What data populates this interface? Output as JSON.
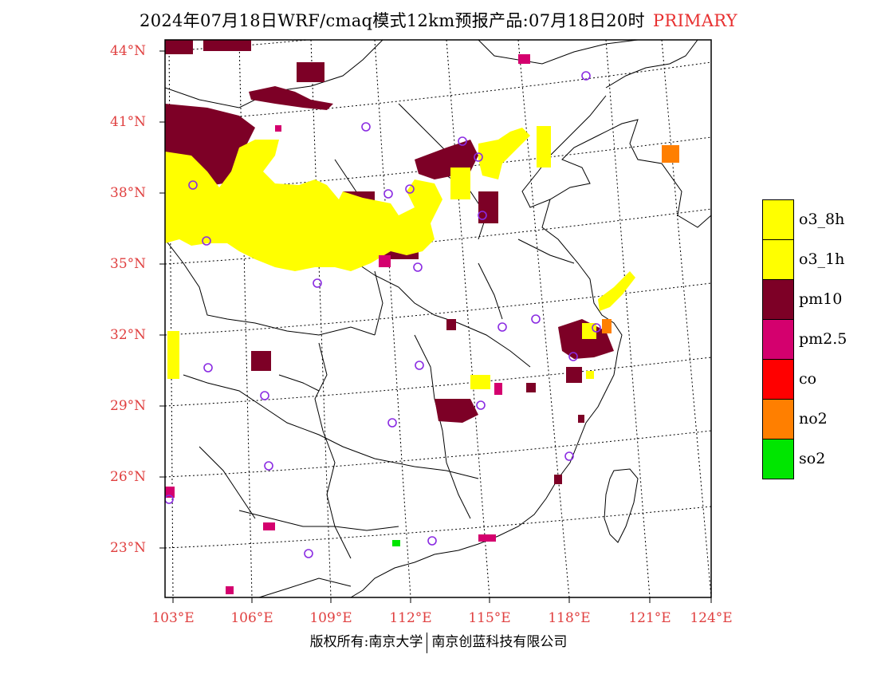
{
  "title": {
    "main": "2024年07月18日WRF/cmaq模式12km预报产品:07月18日20时",
    "tag": "PRIMARY"
  },
  "lat_labels": [
    "44°N",
    "41°N",
    "38°N",
    "35°N",
    "32°N",
    "29°N",
    "26°N",
    "23°N"
  ],
  "lon_labels": [
    "103°E",
    "106°E",
    "109°E",
    "112°E",
    "115°E",
    "118°E",
    "121°E",
    "124°E"
  ],
  "legend": [
    {
      "label": "o3_8h",
      "color": "#ffff00"
    },
    {
      "label": "o3_1h",
      "color": "#ffff00"
    },
    {
      "label": "pm10",
      "color": "#7d0026"
    },
    {
      "label": "pm2.5",
      "color": "#d4006e"
    },
    {
      "label": "co",
      "color": "#ff0000"
    },
    {
      "label": "no2",
      "color": "#ff7f00"
    },
    {
      "label": "so2",
      "color": "#00e600"
    }
  ],
  "footer": {
    "left": "版权所有:南京大学",
    "right": "南京创蓝科技有限公司"
  }
}
